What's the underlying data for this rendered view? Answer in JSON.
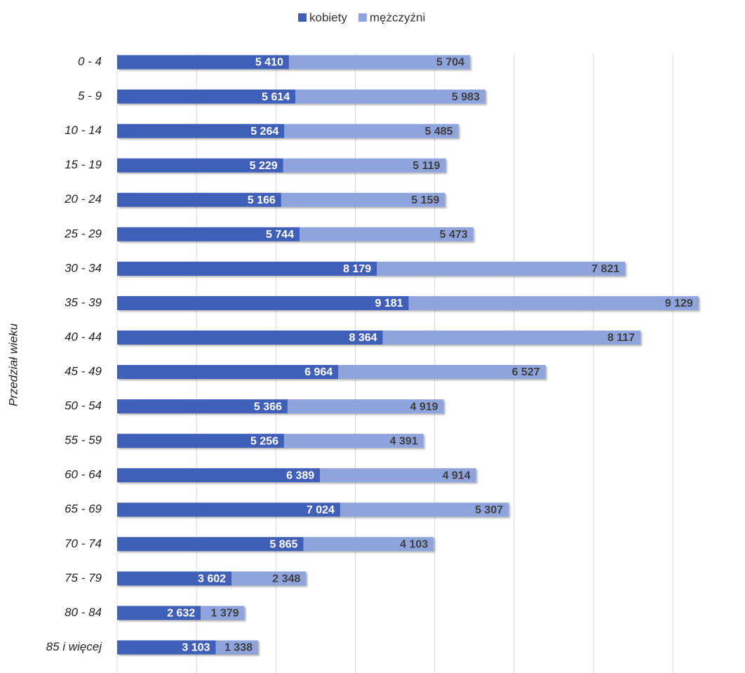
{
  "chart_data": {
    "type": "stacked-barh",
    "y_label": "Przedział wieku",
    "categories": [
      "0 - 4",
      "5 - 9",
      "10 - 14",
      "15 - 19",
      "20 - 24",
      "25 - 29",
      "30 - 34",
      "35 - 39",
      "40 - 44",
      "45 - 49",
      "50 - 54",
      "55 - 59",
      "60 - 64",
      "65 - 69",
      "70 - 74",
      "75 - 79",
      "80 - 84",
      "85 i więcej"
    ],
    "series": [
      {
        "name": "kobiety",
        "color": "#3f5fb8",
        "values": [
          5410,
          5614,
          5264,
          5229,
          5166,
          5744,
          8179,
          9181,
          8364,
          6964,
          5366,
          5256,
          6389,
          7024,
          5865,
          3602,
          2632,
          3103
        ],
        "value_labels": [
          "5 410",
          "5 614",
          "5 264",
          "5 229",
          "5 166",
          "5 744",
          "8 179",
          "9 181",
          "8 364",
          "6 964",
          "5 366",
          "5 256",
          "6 389",
          "7 024",
          "5 865",
          "3 602",
          "2 632",
          "3 103"
        ]
      },
      {
        "name": "mężczyźni",
        "color": "#8fa3dc",
        "values": [
          5704,
          5983,
          5485,
          5119,
          5159,
          5473,
          7821,
          9129,
          8117,
          6527,
          4919,
          4391,
          4914,
          5307,
          4103,
          2348,
          1379,
          1338
        ],
        "value_labels": [
          "5 704",
          "5 983",
          "5 485",
          "5 119",
          "5 159",
          "5 473",
          "7 821",
          "9 129",
          "8 117",
          "6 527",
          "4 919",
          "4 391",
          "4 914",
          "5 307",
          "4 103",
          "2 348",
          "1 379",
          "1 338"
        ]
      }
    ],
    "xlim": [
      0,
      19000
    ],
    "xticks": [
      0,
      2500,
      5000,
      7500,
      10000,
      12500,
      15000,
      17500
    ],
    "grid": true,
    "legend": "top"
  }
}
